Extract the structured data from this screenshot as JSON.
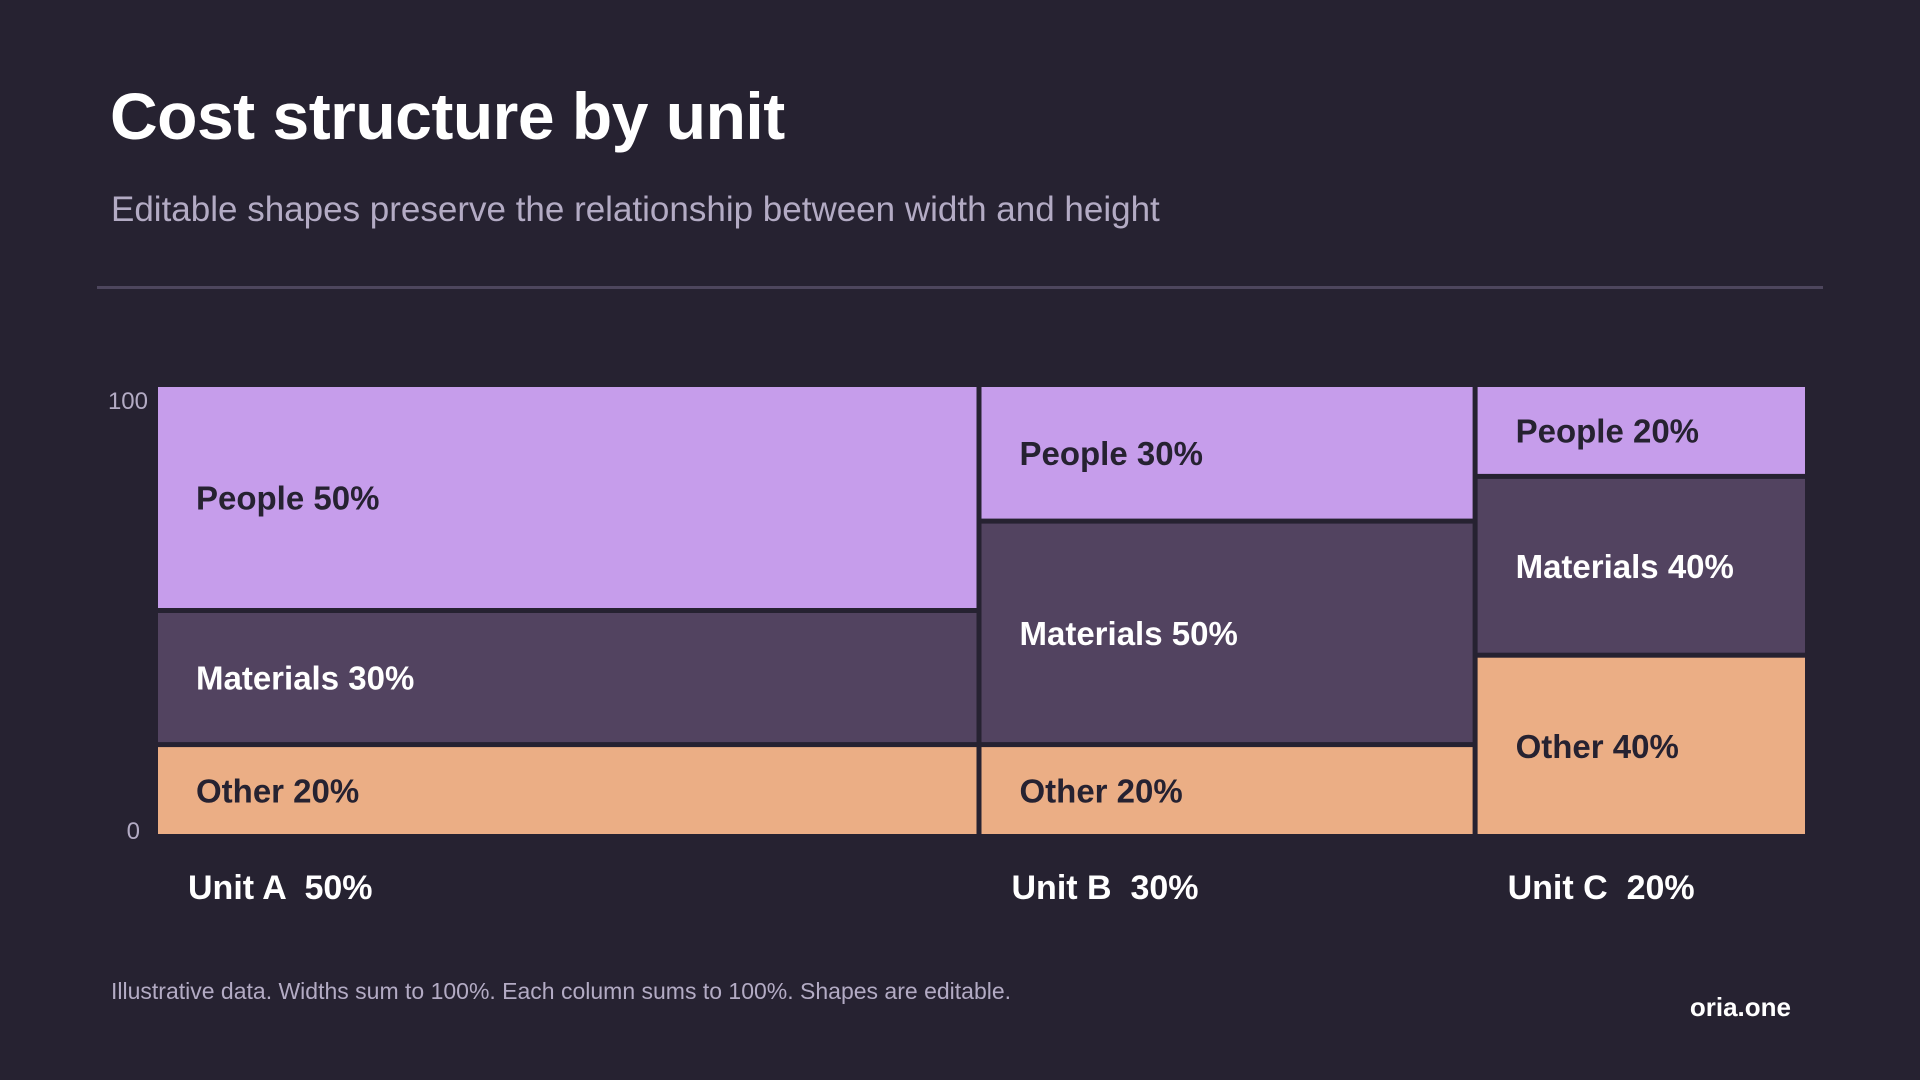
{
  "header": {
    "title": "Cost structure by unit",
    "subtitle": "Editable shapes preserve the relationship between width and height"
  },
  "footer": {
    "note": "Illustrative data. Widths sum to 100%. Each column sums to 100%. Shapes are editable.",
    "brand": "oria.one"
  },
  "colors": {
    "background": "#262231",
    "people": "#c69deb",
    "materials": "#524360",
    "other": "#ebae85",
    "dark_text": "#262231",
    "light_text": "#ffffff",
    "muted_text": "#b3abc4"
  },
  "chart_data": {
    "type": "marimekko",
    "title": "Cost structure by unit",
    "subtitle": "Editable shapes preserve the relationship between width and height",
    "ylim": [
      0,
      100
    ],
    "y_ticks": [
      "0",
      "100"
    ],
    "categories": [
      {
        "name": "Unit A",
        "width_pct": 50,
        "label": "Unit A  50%",
        "segments": [
          {
            "name": "People",
            "value": 50,
            "label": "People 50%"
          },
          {
            "name": "Materials",
            "value": 30,
            "label": "Materials 30%"
          },
          {
            "name": "Other",
            "value": 20,
            "label": "Other 20%"
          }
        ]
      },
      {
        "name": "Unit B",
        "width_pct": 30,
        "label": "Unit B  30%",
        "segments": [
          {
            "name": "People",
            "value": 30,
            "label": "People 30%"
          },
          {
            "name": "Materials",
            "value": 50,
            "label": "Materials 50%"
          },
          {
            "name": "Other",
            "value": 20,
            "label": "Other 20%"
          }
        ]
      },
      {
        "name": "Unit C",
        "width_pct": 20,
        "label": "Unit C  20%",
        "segments": [
          {
            "name": "People",
            "value": 20,
            "label": "People 20%"
          },
          {
            "name": "Materials",
            "value": 40,
            "label": "Materials 40%"
          },
          {
            "name": "Other",
            "value": 40,
            "label": "Other 40%"
          }
        ]
      }
    ]
  }
}
